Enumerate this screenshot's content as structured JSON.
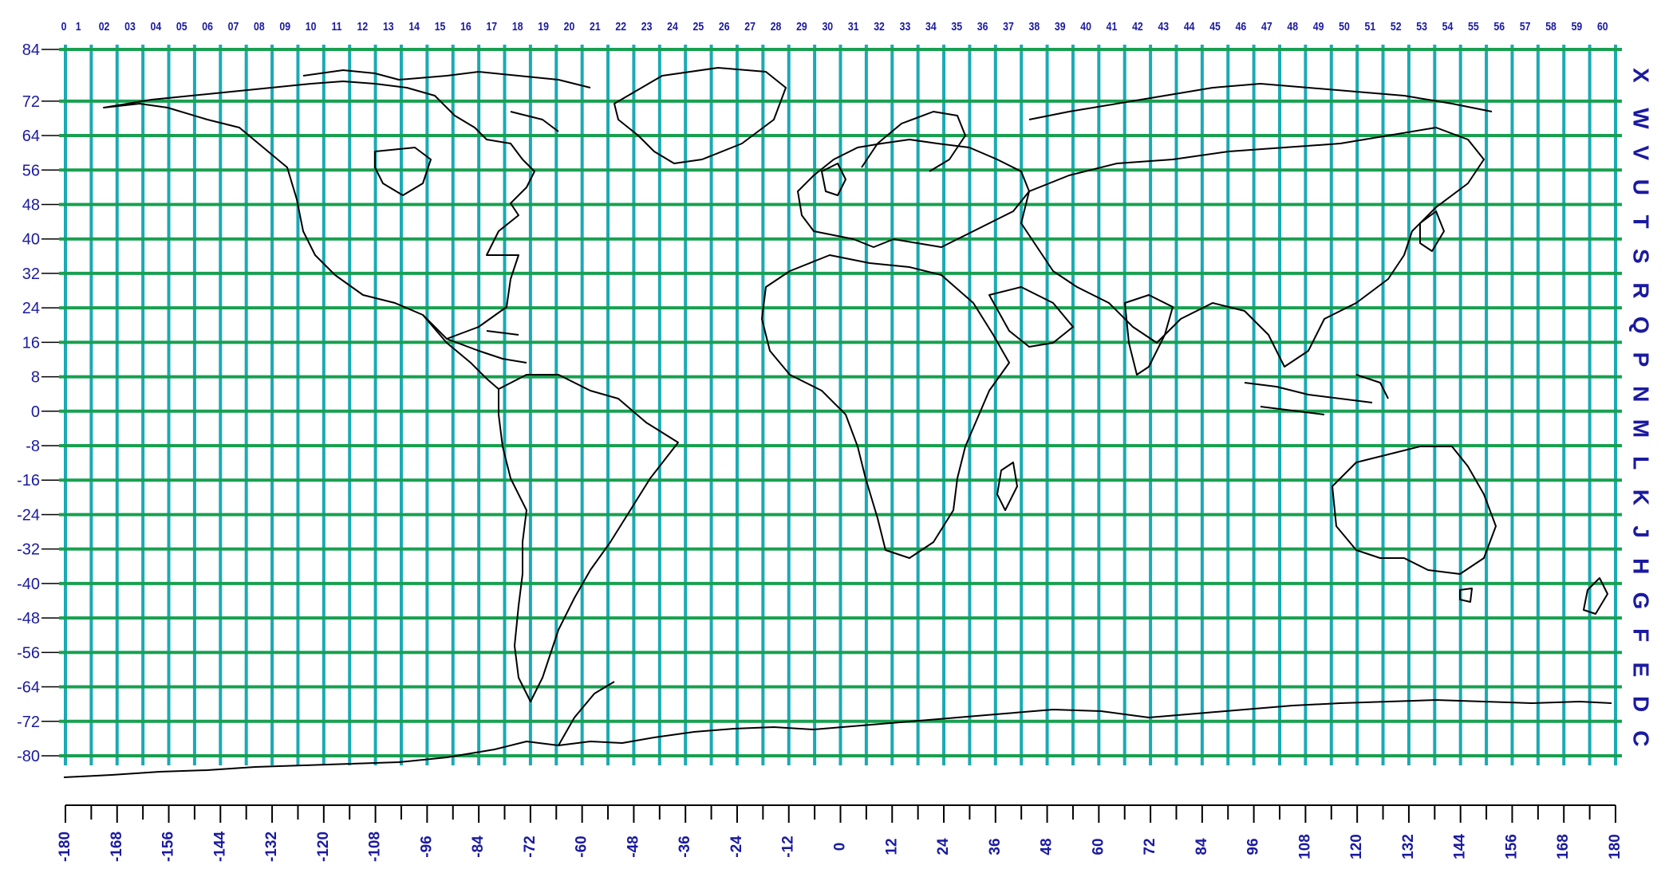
{
  "map": {
    "zone_numbers": [
      "0",
      "1",
      "02",
      "03",
      "04",
      "05",
      "06",
      "07",
      "08",
      "09",
      "10",
      "11",
      "12",
      "13",
      "14",
      "15",
      "16",
      "17",
      "18",
      "19",
      "20",
      "21",
      "22",
      "23",
      "24",
      "25",
      "26",
      "27",
      "28",
      "29",
      "30",
      "31",
      "32",
      "33",
      "34",
      "35",
      "36",
      "37",
      "38",
      "39",
      "40",
      "41",
      "42",
      "43",
      "44",
      "45",
      "46",
      "47",
      "48",
      "49",
      "50",
      "51",
      "52",
      "53",
      "54",
      "55",
      "56",
      "57",
      "58",
      "59",
      "60"
    ],
    "latitude_labels": [
      "84",
      "72",
      "64",
      "56",
      "48",
      "40",
      "32",
      "24",
      "16",
      "8",
      "0",
      "-8",
      "-16",
      "-24",
      "-32",
      "-40",
      "-48",
      "-56",
      "-64",
      "-72",
      "-80"
    ],
    "latitude_values": [
      84,
      72,
      64,
      56,
      48,
      40,
      32,
      24,
      16,
      8,
      0,
      -8,
      -16,
      -24,
      -32,
      -40,
      -48,
      -56,
      -64,
      -72,
      -80
    ],
    "band_letters": [
      "X",
      "W",
      "V",
      "U",
      "T",
      "S",
      "R",
      "Q",
      "P",
      "N",
      "M",
      "L",
      "K",
      "J",
      "H",
      "G",
      "F",
      "E",
      "D",
      "C"
    ],
    "longitude_labels": [
      "-180",
      "-168",
      "-156",
      "-144",
      "-132",
      "-120",
      "-108",
      "-96",
      "-84",
      "-72",
      "-60",
      "-48",
      "-36",
      "-24",
      "-12",
      "0",
      "12",
      "24",
      "36",
      "48",
      "60",
      "72",
      "84",
      "96",
      "108",
      "120",
      "132",
      "144",
      "156",
      "168",
      "180"
    ],
    "longitude_values": [
      -180,
      -168,
      -156,
      -144,
      -132,
      -120,
      -108,
      -96,
      -84,
      -72,
      -60,
      -48,
      -36,
      -24,
      -12,
      0,
      12,
      24,
      36,
      48,
      60,
      72,
      84,
      96,
      108,
      120,
      132,
      144,
      156,
      168,
      180
    ],
    "colors": {
      "zone_lines": "#1aaab4",
      "band_lines": "#18a050",
      "labels": "#1a1aa0",
      "coastline": "#000000",
      "axis": "#000000"
    }
  }
}
